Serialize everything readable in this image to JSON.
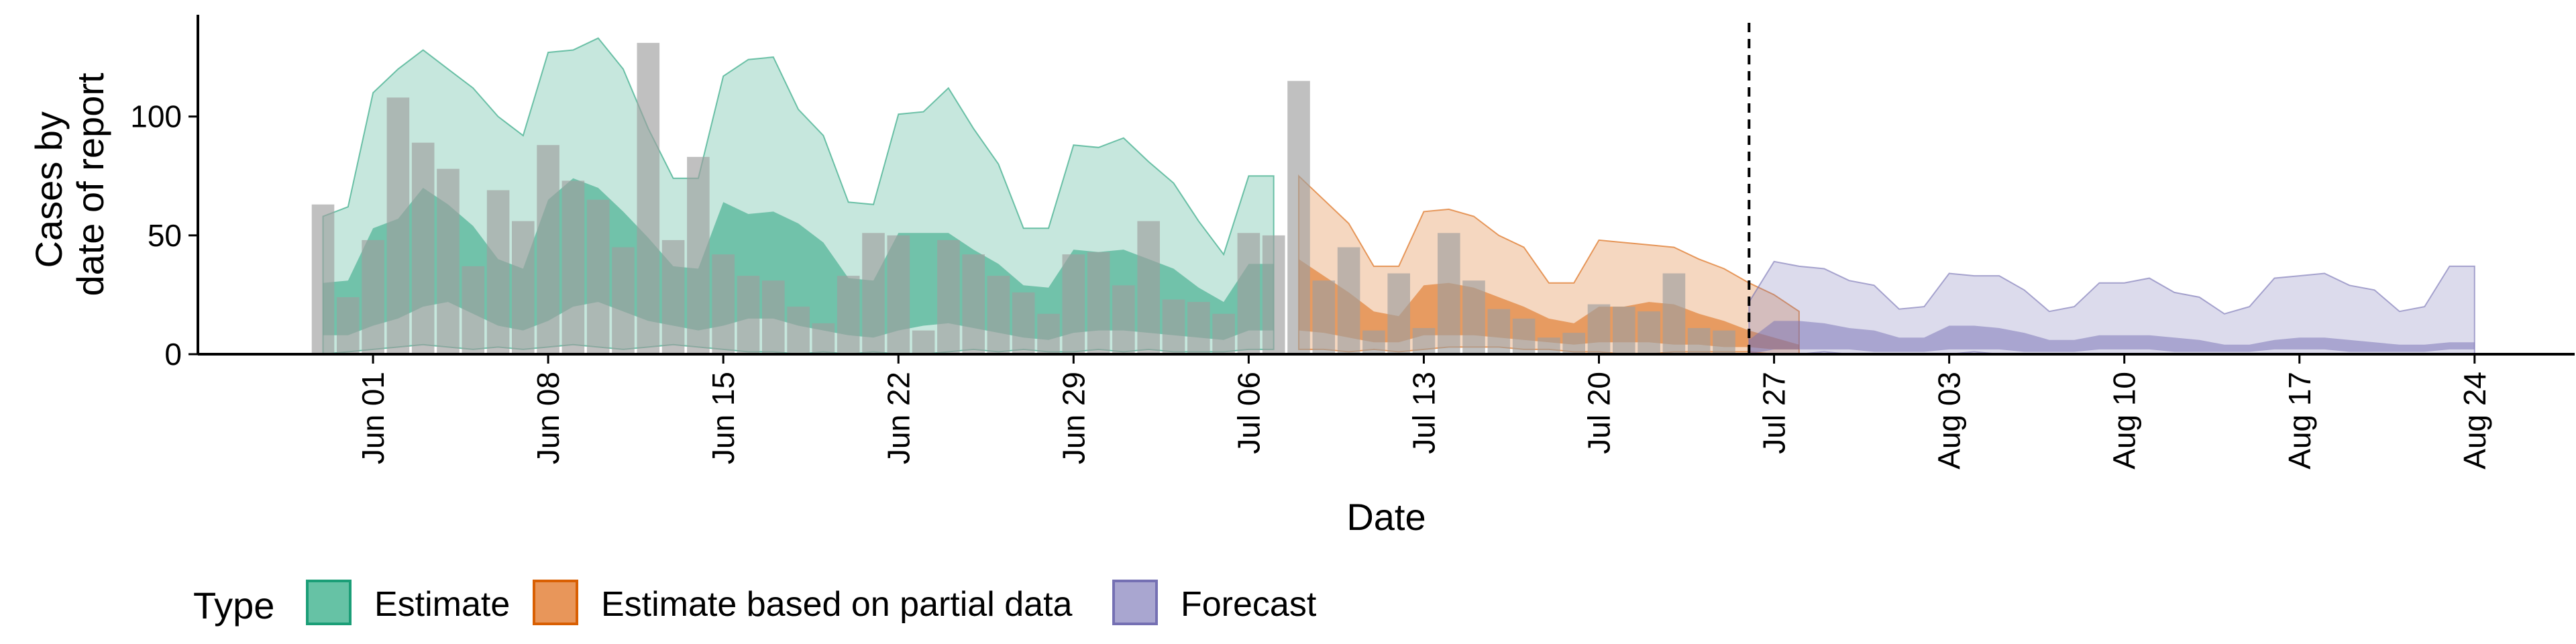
{
  "chart_data": {
    "type": "bar",
    "xlabel": "Date",
    "ylabel": [
      "Cases by",
      "date of report"
    ],
    "ylim": [
      0,
      140
    ],
    "xlim": [
      "2021-05-25",
      "2021-08-28"
    ],
    "yticks": [
      0,
      50,
      100
    ],
    "xticks": [
      "Jun 01",
      "Jun 08",
      "Jun 15",
      "Jun 22",
      "Jun 29",
      "Jul 06",
      "Jul 13",
      "Jul 20",
      "Jul 27",
      "Aug 03",
      "Aug 10",
      "Aug 17",
      "Aug 24"
    ],
    "xtick_dates": [
      "2021-06-01",
      "2021-06-08",
      "2021-06-15",
      "2021-06-22",
      "2021-06-29",
      "2021-07-06",
      "2021-07-13",
      "2021-07-20",
      "2021-07-27",
      "2021-08-03",
      "2021-08-10",
      "2021-08-17",
      "2021-08-24"
    ],
    "forecast_date": "2021-07-26",
    "grid": false,
    "legend": {
      "title": "Type",
      "position": "bottom-left",
      "entries": [
        {
          "name": "Estimate",
          "fill": "#66c2a5",
          "stroke": "#1b9e77"
        },
        {
          "name": "Estimate based on partial data",
          "fill": "#e8965a",
          "stroke": "#d95f02"
        },
        {
          "name": "Forecast",
          "fill": "#a9a6d0",
          "stroke": "#7570b3"
        }
      ]
    },
    "colors": {
      "estimate": "#1b9e77",
      "partial": "#d95f02",
      "forecast": "#7570b3",
      "bars": "#9e9e9e"
    },
    "reported_cases": {
      "start_date": "2021-05-30",
      "values": [
        63,
        24,
        48,
        108,
        89,
        78,
        37,
        69,
        56,
        88,
        73,
        65,
        45,
        131,
        48,
        83,
        42,
        33,
        31,
        20,
        13,
        33,
        51,
        50,
        10,
        48,
        42,
        33,
        26,
        17,
        42,
        43,
        29,
        56,
        23,
        22,
        17,
        51,
        50,
        115,
        31,
        45,
        10,
        34,
        11,
        51,
        31,
        19,
        15,
        7,
        9,
        21,
        20,
        18,
        34,
        11,
        10
      ]
    },
    "series": [
      {
        "name": "Estimate",
        "start_date": "2021-05-30",
        "outer_lower": [
          0,
          1,
          2,
          3,
          4,
          3,
          2,
          3,
          2,
          3,
          4,
          3,
          2,
          3,
          4,
          3,
          2,
          1,
          1,
          0,
          1,
          0,
          1,
          0,
          0,
          1,
          2,
          1,
          2,
          1,
          1,
          2,
          1,
          2,
          1,
          1,
          1,
          2,
          2
        ],
        "outer_upper": [
          58,
          62,
          110,
          120,
          128,
          120,
          112,
          100,
          92,
          127,
          128,
          133,
          120,
          95,
          74,
          74,
          117,
          124,
          125,
          103,
          92,
          64,
          63,
          101,
          102,
          112,
          95,
          80,
          53,
          53,
          88,
          87,
          91,
          81,
          72,
          56,
          42,
          75,
          75
        ],
        "inner_lower": [
          8,
          8,
          12,
          15,
          20,
          22,
          17,
          12,
          10,
          14,
          20,
          22,
          18,
          14,
          12,
          10,
          12,
          15,
          15,
          12,
          10,
          8,
          7,
          10,
          12,
          13,
          11,
          9,
          7,
          6,
          9,
          10,
          10,
          9,
          8,
          7,
          6,
          10,
          10
        ],
        "inner_upper": [
          30,
          31,
          53,
          57,
          70,
          63,
          54,
          40,
          36,
          65,
          74,
          70,
          60,
          49,
          37,
          36,
          64,
          59,
          60,
          55,
          47,
          32,
          31,
          51,
          51,
          51,
          44,
          38,
          29,
          28,
          44,
          43,
          44,
          40,
          36,
          28,
          22,
          38,
          38
        ]
      },
      {
        "name": "Estimate based on partial data",
        "start_date": "2021-07-08",
        "outer_lower": [
          2,
          2,
          1,
          2,
          1,
          2,
          3,
          3,
          3,
          2,
          2,
          1,
          1,
          0,
          0,
          1,
          1,
          1,
          1,
          0,
          0
        ],
        "outer_upper": [
          75,
          65,
          55,
          37,
          37,
          60,
          61,
          58,
          50,
          45,
          30,
          30,
          48,
          47,
          46,
          45,
          40,
          36,
          30,
          25,
          18
        ],
        "inner_lower": [
          10,
          9,
          7,
          5,
          5,
          8,
          8,
          8,
          7,
          6,
          5,
          4,
          5,
          5,
          5,
          4,
          4,
          3,
          3,
          2,
          2
        ],
        "inner_upper": [
          40,
          33,
          26,
          18,
          16,
          29,
          30,
          28,
          24,
          20,
          15,
          13,
          20,
          20,
          22,
          21,
          17,
          14,
          10,
          7,
          4
        ]
      },
      {
        "name": "Forecast",
        "start_date": "2021-07-26",
        "outer_lower": [
          0,
          0,
          0,
          1,
          0,
          0,
          0,
          0,
          0,
          1,
          0,
          0,
          0,
          0,
          0,
          0,
          0,
          0,
          0,
          0,
          0,
          0,
          0,
          0,
          0,
          0,
          0,
          0,
          0,
          0
        ],
        "outer_upper": [
          22,
          39,
          37,
          36,
          31,
          29,
          19,
          20,
          34,
          33,
          33,
          27,
          18,
          20,
          30,
          30,
          32,
          26,
          24,
          17,
          20,
          32,
          33,
          34,
          29,
          27,
          18,
          20,
          37,
          37
        ],
        "inner_lower": [
          0,
          2,
          2,
          2,
          2,
          1,
          1,
          1,
          2,
          2,
          2,
          1,
          1,
          1,
          2,
          2,
          2,
          1,
          1,
          1,
          1,
          2,
          2,
          2,
          1,
          1,
          1,
          1,
          2,
          2
        ],
        "inner_upper": [
          6,
          14,
          14,
          13,
          11,
          10,
          7,
          7,
          12,
          12,
          11,
          9,
          6,
          6,
          8,
          8,
          8,
          7,
          6,
          4,
          4,
          6,
          7,
          7,
          6,
          5,
          4,
          4,
          5,
          5
        ]
      }
    ]
  }
}
